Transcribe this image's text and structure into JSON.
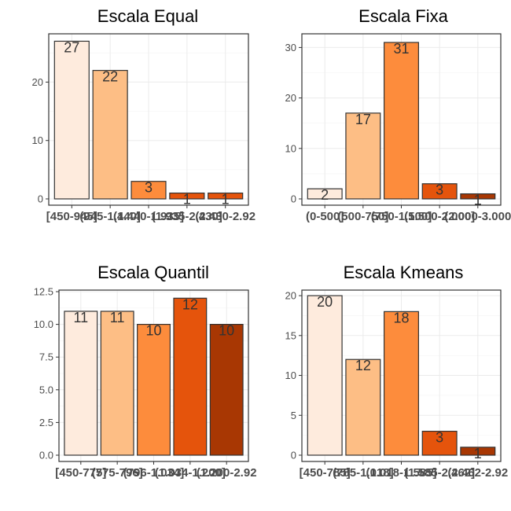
{
  "chart_data": [
    {
      "type": "bar",
      "title": "Escala Equal",
      "categories": [
        "[450-945]",
        "(945-1.440]",
        "(1.440-1.935]",
        "(1.935-2.430]",
        "(2.430-2.92"
      ],
      "values": [
        27,
        22,
        3,
        1,
        1
      ],
      "ylim": [
        0,
        28
      ],
      "yticks": [
        0,
        10,
        20
      ],
      "colors": [
        "#feebdd",
        "#fdbe85",
        "#fd8c3c",
        "#e5540c",
        "#e5540c"
      ]
    },
    {
      "type": "bar",
      "title": "Escala Fixa",
      "categories": [
        "(0-500]",
        "(500-750]",
        "(750-1.500]",
        "(1.500-2.000]",
        "(2.000-3.000"
      ],
      "values": [
        2,
        17,
        31,
        3,
        1
      ],
      "ylim": [
        0,
        32.4
      ],
      "yticks": [
        0,
        10,
        20,
        30
      ],
      "colors": [
        "#feebdd",
        "#fdbe85",
        "#fd8c3c",
        "#e5540c",
        "#a83703"
      ]
    },
    {
      "type": "bar",
      "title": "Escala Quantil",
      "categories": [
        "[450-775]",
        "(775-796]",
        "(796-1.034]",
        "(1.034-1.200]",
        "(1.200-2.92"
      ],
      "values": [
        11,
        11,
        10,
        12,
        10
      ],
      "ylim": [
        0,
        12.5
      ],
      "yticks": [
        "0.0",
        "2.5",
        "5.0",
        "7.5",
        "10.0",
        "12.5"
      ],
      "colors": [
        "#feebdd",
        "#fdbe85",
        "#fd8c3c",
        "#e5540c",
        "#a83703"
      ]
    },
    {
      "type": "bar",
      "title": "Escala Kmeans",
      "categories": [
        "[450-785]",
        "(785-1.018]",
        "(1.018-1.585]",
        "(1.585-2.462]",
        "(2.462-2.92"
      ],
      "values": [
        20,
        12,
        18,
        3,
        1
      ],
      "ylim": [
        0,
        20.5
      ],
      "yticks": [
        0,
        5,
        10,
        15,
        20
      ],
      "colors": [
        "#feebdd",
        "#fdbe85",
        "#fd8c3c",
        "#e5540c",
        "#a83703"
      ]
    }
  ]
}
